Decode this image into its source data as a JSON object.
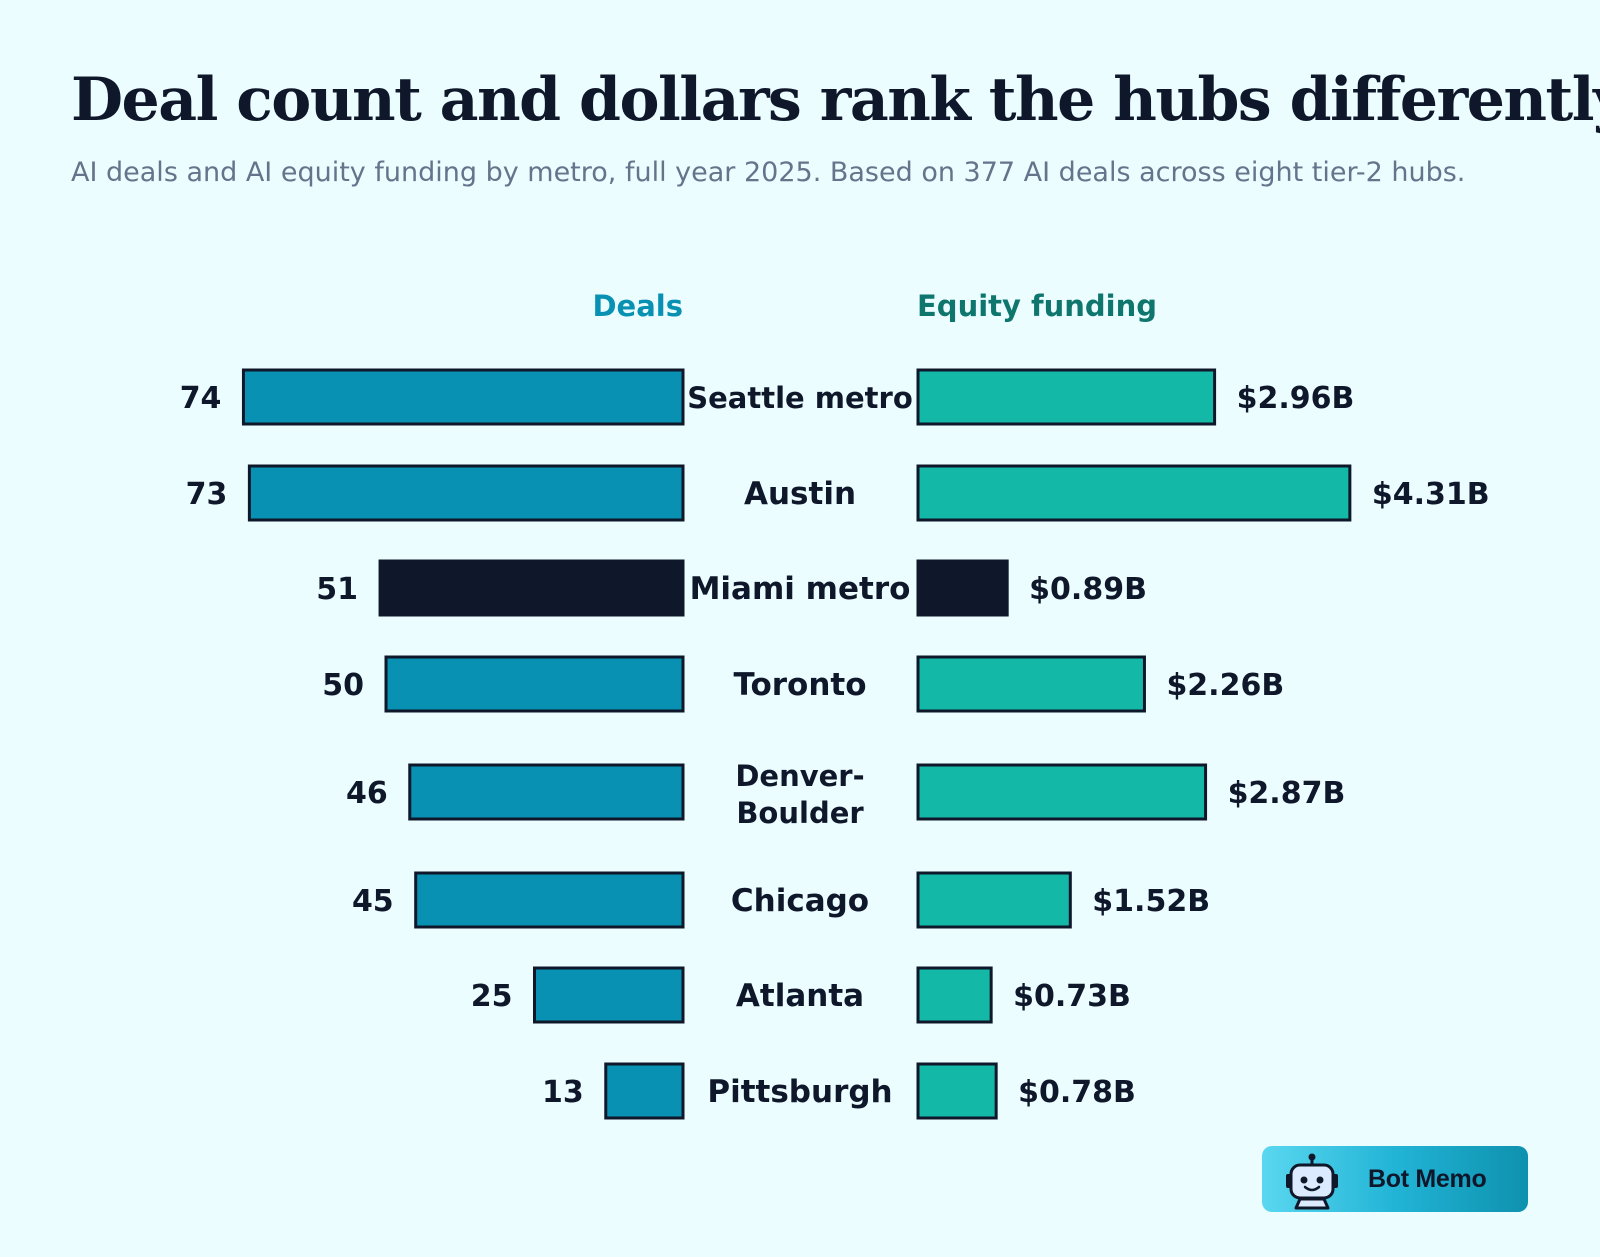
{
  "title": "Deal count and dollars rank the hubs differently",
  "subtitle": "AI deals and AI equity funding by metro, full year 2025. Based on 377 AI deals across eight tier-2 hubs.",
  "colors": {
    "deals": "#0891b2",
    "funding": "#14b8a6",
    "highlight": "#0f172a",
    "deals_header": "#0891b2",
    "funding_header": "#0f766e",
    "text": "#0f172a",
    "muted": "#64748b",
    "background": "#ecfdff"
  },
  "chart_data": {
    "type": "bar",
    "layout": "butterfly",
    "headers": {
      "left": "Deals",
      "right": "Equity funding"
    },
    "categories": [
      "Seattle metro",
      "Austin",
      "Miami metro",
      "Toronto",
      "Denver-Boulder",
      "Chicago",
      "Atlanta",
      "Pittsburgh"
    ],
    "highlighted_category": "Miami metro",
    "series": [
      {
        "name": "Deals",
        "values": [
          74,
          73,
          51,
          50,
          46,
          45,
          25,
          13
        ],
        "labels": [
          "74",
          "73",
          "51",
          "50",
          "46",
          "45",
          "25",
          "13"
        ]
      },
      {
        "name": "Equity funding",
        "unit": "$B",
        "values": [
          2.96,
          4.31,
          0.89,
          2.26,
          2.87,
          1.52,
          0.73,
          0.78
        ],
        "labels": [
          "$2.96B",
          "$4.31B",
          "$0.89B",
          "$2.26B",
          "$2.87B",
          "$1.52B",
          "$0.73B",
          "$0.78B"
        ]
      }
    ]
  },
  "badge": {
    "label": "Bot Memo",
    "icon": "robot-icon"
  }
}
